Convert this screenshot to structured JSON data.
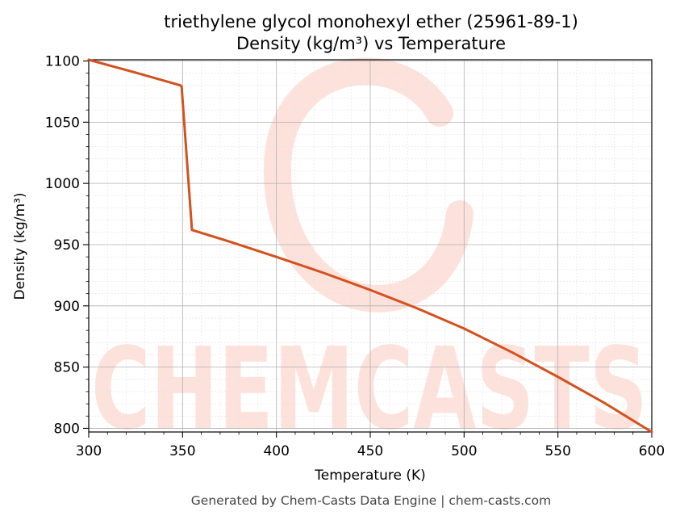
{
  "chart_data": {
    "type": "line",
    "title_line1": "triethylene glycol monohexyl ether (25961-89-1)",
    "title_line2": "Density (kg/m³) vs Temperature",
    "xlabel": "Temperature (K)",
    "ylabel": "Density (kg/m³)",
    "xlim": [
      300,
      600
    ],
    "ylim": [
      797,
      1101
    ],
    "xticks": [
      300,
      350,
      400,
      450,
      500,
      550,
      600
    ],
    "yticks": [
      800,
      850,
      900,
      950,
      1000,
      1050,
      1100
    ],
    "grid": true,
    "legend": "none",
    "series": [
      {
        "color": "#d4511e",
        "x": [
          300,
          325,
          349,
          349.5,
          355,
          375,
          400,
          425,
          450,
          475,
          500,
          525,
          550,
          575,
          600
        ],
        "y": [
          1101,
          1090.5,
          1080,
          1079,
          962,
          952.5,
          940,
          927,
          913,
          898,
          881.5,
          862.5,
          842,
          820.5,
          797
        ]
      }
    ],
    "watermark": "CHEMCASTS",
    "watermark_color": "#fde2dc"
  },
  "footer": "Generated by Chem-Casts Data Engine | chem-casts.com"
}
